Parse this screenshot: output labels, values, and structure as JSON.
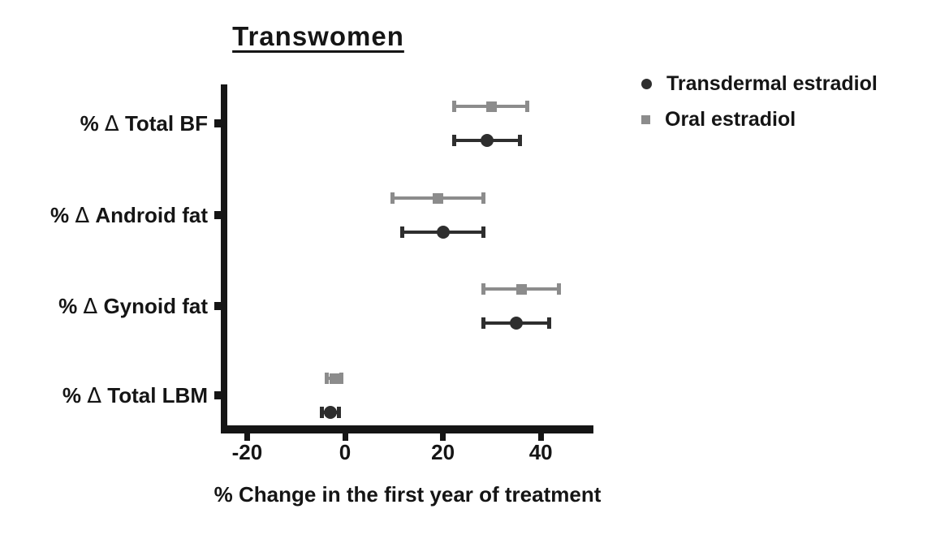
{
  "chart_data": {
    "type": "scatter",
    "subtype": "horizontal point estimates with error bars (forest-style plot)",
    "title": "Transwomen",
    "xlabel": "% Change in the first year of treatment",
    "x_ticks": [
      -20,
      0,
      20,
      40
    ],
    "xlim": [
      -25.4,
      50.8
    ],
    "categories": [
      "% Δ Total BF",
      "% Δ Android fat",
      "% Δ Gynoid fat",
      "% Δ Total LBM"
    ],
    "grid": false,
    "legend_position": "top-right",
    "axis_color": "#151515",
    "series": [
      {
        "name": "Transdermal estradiol",
        "marker": "circle",
        "color": "#2e2e2e",
        "values": [
          29,
          20,
          35,
          -3
        ],
        "ci_low": [
          22,
          11.5,
          28,
          -5
        ],
        "ci_high": [
          36,
          28.5,
          42,
          -1
        ]
      },
      {
        "name": "Oral estradiol",
        "marker": "square",
        "color": "#8c8c8c",
        "values": [
          30,
          19,
          36,
          -2
        ],
        "ci_low": [
          22,
          9.5,
          28,
          -4
        ],
        "ci_high": [
          37.5,
          28.5,
          44,
          -0.5
        ]
      }
    ]
  }
}
